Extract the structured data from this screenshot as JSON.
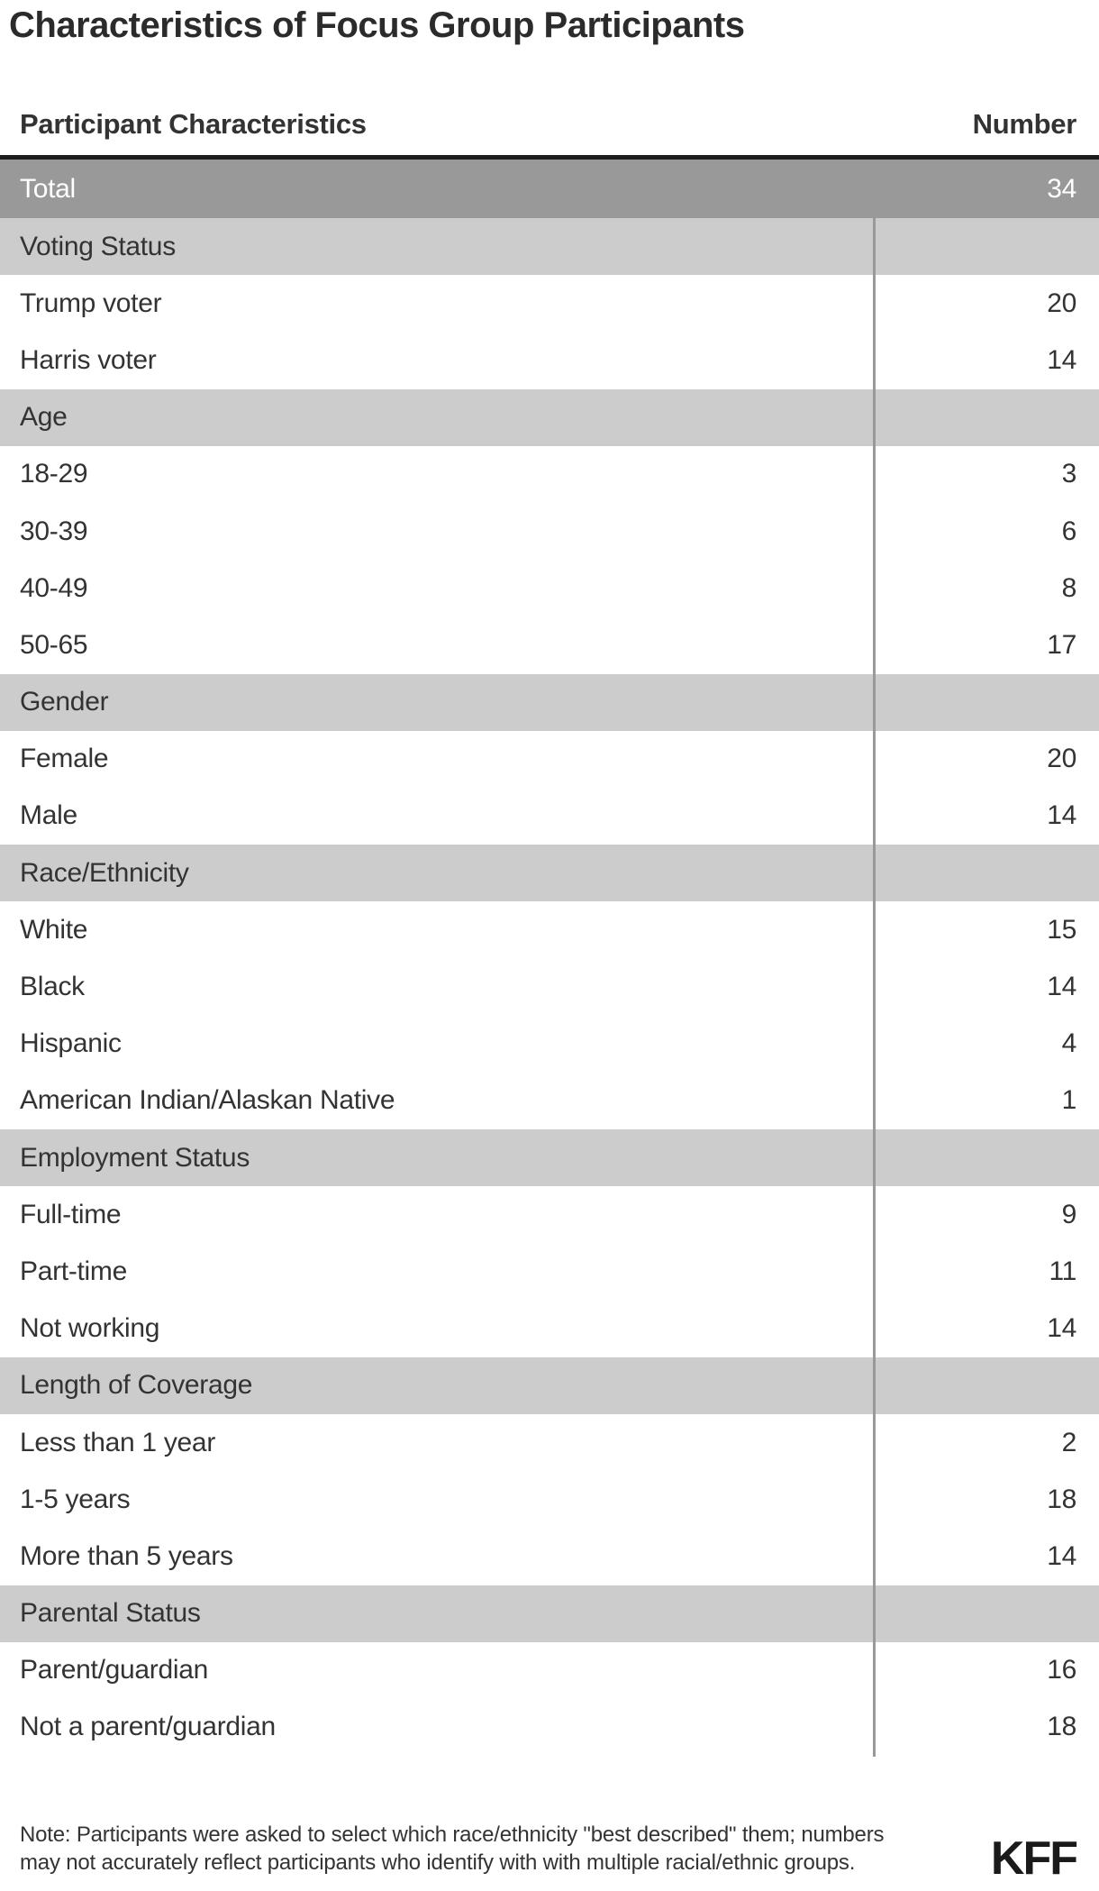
{
  "title": "Characteristics of Focus Group Participants",
  "chart_data": {
    "type": "table",
    "title": "Characteristics of Focus Group Participants",
    "columns": [
      "Participant Characteristics",
      "Number"
    ],
    "total": {
      "label": "Total",
      "value": 34
    },
    "sections": [
      {
        "label": "Voting Status",
        "rows": [
          {
            "label": "Trump voter",
            "value": 20
          },
          {
            "label": "Harris voter",
            "value": 14
          }
        ]
      },
      {
        "label": "Age",
        "rows": [
          {
            "label": "18-29",
            "value": 3
          },
          {
            "label": "30-39",
            "value": 6
          },
          {
            "label": "40-49",
            "value": 8
          },
          {
            "label": "50-65",
            "value": 17
          }
        ]
      },
      {
        "label": "Gender",
        "rows": [
          {
            "label": "Female",
            "value": 20
          },
          {
            "label": "Male",
            "value": 14
          }
        ]
      },
      {
        "label": "Race/Ethnicity",
        "rows": [
          {
            "label": "White",
            "value": 15
          },
          {
            "label": "Black",
            "value": 14
          },
          {
            "label": "Hispanic",
            "value": 4
          },
          {
            "label": "American Indian/Alaskan Native",
            "value": 1
          }
        ]
      },
      {
        "label": "Employment Status",
        "rows": [
          {
            "label": "Full-time",
            "value": 9
          },
          {
            "label": "Part-time",
            "value": 11
          },
          {
            "label": "Not working",
            "value": 14
          }
        ]
      },
      {
        "label": "Length of Coverage",
        "rows": [
          {
            "label": "Less than 1 year",
            "value": 2
          },
          {
            "label": "1-5 years",
            "value": 18
          },
          {
            "label": "More than 5 years",
            "value": 14
          }
        ]
      },
      {
        "label": "Parental Status",
        "rows": [
          {
            "label": "Parent/guardian",
            "value": 16
          },
          {
            "label": "Not a parent/guardian",
            "value": 18
          }
        ]
      }
    ],
    "layout_hints": {
      "grid": "off",
      "value_column_alignment": "right",
      "section_rows_span_full_width": true
    }
  },
  "note_lines": [
    "Note: Participants were asked to select which race/ethnicity \"best described\" them; numbers",
    "may not accurately reflect participants who identify with with multiple racial/ethnic groups."
  ],
  "logo_text": "KFF",
  "colors": {
    "title_text": "#2b2b2b",
    "header_text": "#333333",
    "text": "#333333",
    "header_rule": "#1c1c1c",
    "total_row_bg": "#999999",
    "total_row_text": "#ffffff",
    "section_row_bg": "#cccccc",
    "divider": "#999999",
    "logo_text": "#1a1a1a"
  }
}
